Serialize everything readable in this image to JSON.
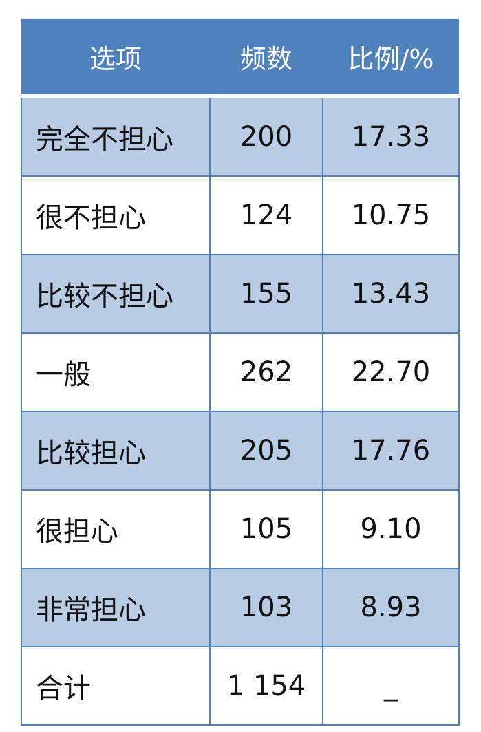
{
  "table": {
    "headers": [
      "选项",
      "频数",
      "比例/%"
    ],
    "rows": [
      {
        "option": "完全不担心",
        "count": "200",
        "percent": "17.33"
      },
      {
        "option": "很不担心",
        "count": "124",
        "percent": "10.75"
      },
      {
        "option": "比较不担心",
        "count": "155",
        "percent": "13.43"
      },
      {
        "option": "一般",
        "count": "262",
        "percent": "22.70"
      },
      {
        "option": "比较担心",
        "count": "205",
        "percent": "17.76"
      },
      {
        "option": "很担心",
        "count": "105",
        "percent": "9.10"
      },
      {
        "option": "非常担心",
        "count": "103",
        "percent": "8.93"
      },
      {
        "option": "合计",
        "count": "1 154",
        "percent": "_"
      }
    ]
  },
  "colors": {
    "header": "#4f81bd",
    "band": "#b8cce4"
  }
}
